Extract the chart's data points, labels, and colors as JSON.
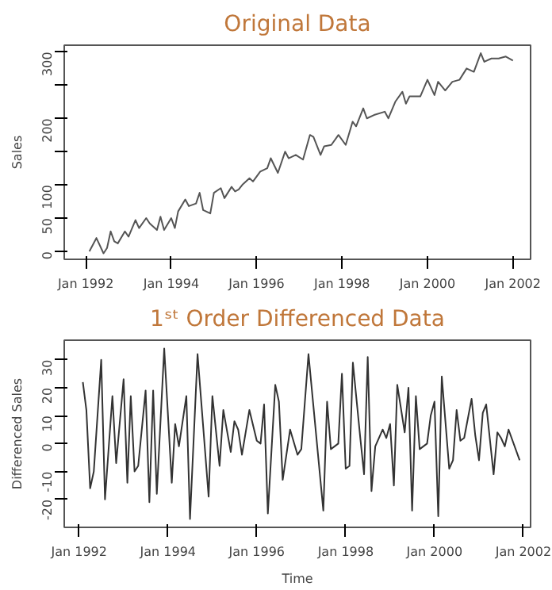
{
  "chart_data": [
    {
      "type": "line",
      "title": "Original Data",
      "ylabel": "Sales",
      "color": "#555555",
      "x": [
        "1992-02",
        "1992-04",
        "1992-06",
        "1992-07",
        "1992-08",
        "1992-09",
        "1992-10",
        "1992-12",
        "1993-01",
        "1993-03",
        "1993-04",
        "1993-06",
        "1993-07",
        "1993-09",
        "1993-10",
        "1993-11",
        "1994-01",
        "1994-02",
        "1994-03",
        "1994-05",
        "1994-06",
        "1994-08",
        "1994-09",
        "1994-10",
        "1994-12",
        "1995-01",
        "1995-03",
        "1995-04",
        "1995-06",
        "1995-07",
        "1995-08",
        "1995-09",
        "1995-11",
        "1995-12",
        "1996-02",
        "1996-04",
        "1996-05",
        "1996-07",
        "1996-09",
        "1996-10",
        "1996-12",
        "1997-02",
        "1997-04",
        "1997-05",
        "1997-07",
        "1997-08",
        "1997-10",
        "1997-12",
        "1998-02",
        "1998-04",
        "1998-05",
        "1998-07",
        "1998-08",
        "1998-10",
        "1999-01",
        "1999-02",
        "1999-04",
        "1999-06",
        "1999-07",
        "1999-08",
        "1999-11",
        "2000-01",
        "2000-03",
        "2000-04",
        "2000-06",
        "2000-08",
        "2000-10",
        "2000-12",
        "2001-02",
        "2001-04",
        "2001-05",
        "2001-07",
        "2001-09",
        "2001-11",
        "2002-01"
      ],
      "values": [
        0,
        20,
        -3,
        5,
        30,
        15,
        12,
        30,
        22,
        47,
        35,
        50,
        42,
        32,
        52,
        32,
        50,
        35,
        60,
        78,
        68,
        72,
        88,
        62,
        57,
        88,
        95,
        80,
        97,
        90,
        93,
        100,
        110,
        105,
        120,
        125,
        140,
        118,
        150,
        140,
        145,
        138,
        175,
        172,
        145,
        158,
        160,
        175,
        160,
        195,
        188,
        215,
        200,
        205,
        210,
        200,
        225,
        240,
        222,
        233,
        233,
        258,
        235,
        255,
        242,
        255,
        258,
        275,
        270,
        298,
        285,
        290,
        290,
        293,
        287
      ],
      "xlim": [
        "1991-07",
        "2002-06"
      ],
      "ylim": [
        -12,
        310
      ],
      "xticks": [
        {
          "value": "1992-01",
          "label": "Jan 1992"
        },
        {
          "value": "1994-01",
          "label": "Jan 1994"
        },
        {
          "value": "1996-01",
          "label": "Jan 1996"
        },
        {
          "value": "1998-01",
          "label": "Jan 1998"
        },
        {
          "value": "2000-01",
          "label": "Jan 2000"
        },
        {
          "value": "2002-01",
          "label": "Jan 2002"
        }
      ],
      "yticks": [
        0,
        50,
        100,
        {
          "value": 150,
          "label": null
        },
        200,
        {
          "value": 250,
          "label": null
        },
        300
      ],
      "grid": false
    },
    {
      "type": "line",
      "title": "1ˢᵗ Order Differenced Data",
      "xlabel": "Time",
      "ylabel": "Differenced Sales",
      "color": "#333333",
      "x": [
        "1992-02",
        "1992-03",
        "1992-04",
        "1992-05",
        "1992-07",
        "1992-08",
        "1992-10",
        "1992-11",
        "1993-01",
        "1993-02",
        "1993-03",
        "1993-04",
        "1993-05",
        "1993-07",
        "1993-08",
        "1993-09",
        "1993-10",
        "1993-12",
        "1994-02",
        "1994-03",
        "1994-04",
        "1994-06",
        "1994-07",
        "1994-09",
        "1994-12",
        "1995-01",
        "1995-03",
        "1995-04",
        "1995-06",
        "1995-07",
        "1995-08",
        "1995-09",
        "1995-11",
        "1996-01",
        "1996-02",
        "1996-03",
        "1996-04",
        "1996-06",
        "1996-07",
        "1996-08",
        "1996-10",
        "1996-12",
        "1997-01",
        "1997-03",
        "1997-07",
        "1997-08",
        "1997-09",
        "1997-11",
        "1997-12",
        "1998-01",
        "1998-02",
        "1998-03",
        "1998-05",
        "1998-06",
        "1998-07",
        "1998-08",
        "1998-09",
        "1998-11",
        "1998-12",
        "1999-01",
        "1999-02",
        "1999-03",
        "1999-05",
        "1999-06",
        "1999-07",
        "1999-08",
        "1999-09",
        "1999-11",
        "1999-12",
        "2000-01",
        "2000-02",
        "2000-03",
        "2000-05",
        "2000-06",
        "2000-07",
        "2000-08",
        "2000-09",
        "2000-11",
        "2000-12",
        "2001-01",
        "2001-02",
        "2001-03",
        "2001-05",
        "2001-06",
        "2001-07",
        "2001-08",
        "2001-09",
        "2001-12"
      ],
      "values": [
        22,
        12,
        -16,
        -10,
        30,
        -20,
        17,
        -7,
        23,
        -14,
        17,
        -10,
        -8,
        19,
        -21,
        19,
        -18,
        34,
        -14,
        7,
        -1,
        17,
        -27,
        32,
        -19,
        17,
        -8,
        12,
        -3,
        8,
        5,
        -4,
        12,
        1,
        0,
        14,
        -25,
        21,
        15,
        -13,
        5,
        -4,
        -2,
        32,
        -24,
        15,
        -2,
        0,
        25,
        -9,
        -8,
        29,
        2,
        -11,
        31,
        -17,
        -1,
        5,
        2,
        7,
        -15,
        21,
        4,
        20,
        -24,
        17,
        -2,
        0,
        10,
        15,
        -26,
        24,
        -9,
        -6,
        12,
        1,
        2,
        16,
        3,
        -6,
        11,
        14,
        -11,
        4,
        2,
        -1,
        5,
        -6
      ],
      "xlim": [
        "1991-09",
        "2002-03"
      ],
      "ylim": [
        -30,
        37
      ],
      "xticks": [
        {
          "value": "1992-01",
          "label": "Jan 1992"
        },
        {
          "value": "1994-01",
          "label": "Jan 1994"
        },
        {
          "value": "1996-01",
          "label": "Jan 1996"
        },
        {
          "value": "1998-01",
          "label": "Jan 1998"
        },
        {
          "value": "2000-01",
          "label": "Jan 2000"
        },
        {
          "value": "2002-01",
          "label": "Jan 2002"
        }
      ],
      "yticks": [
        -20,
        -10,
        0,
        10,
        20,
        30
      ],
      "grid": false
    }
  ]
}
